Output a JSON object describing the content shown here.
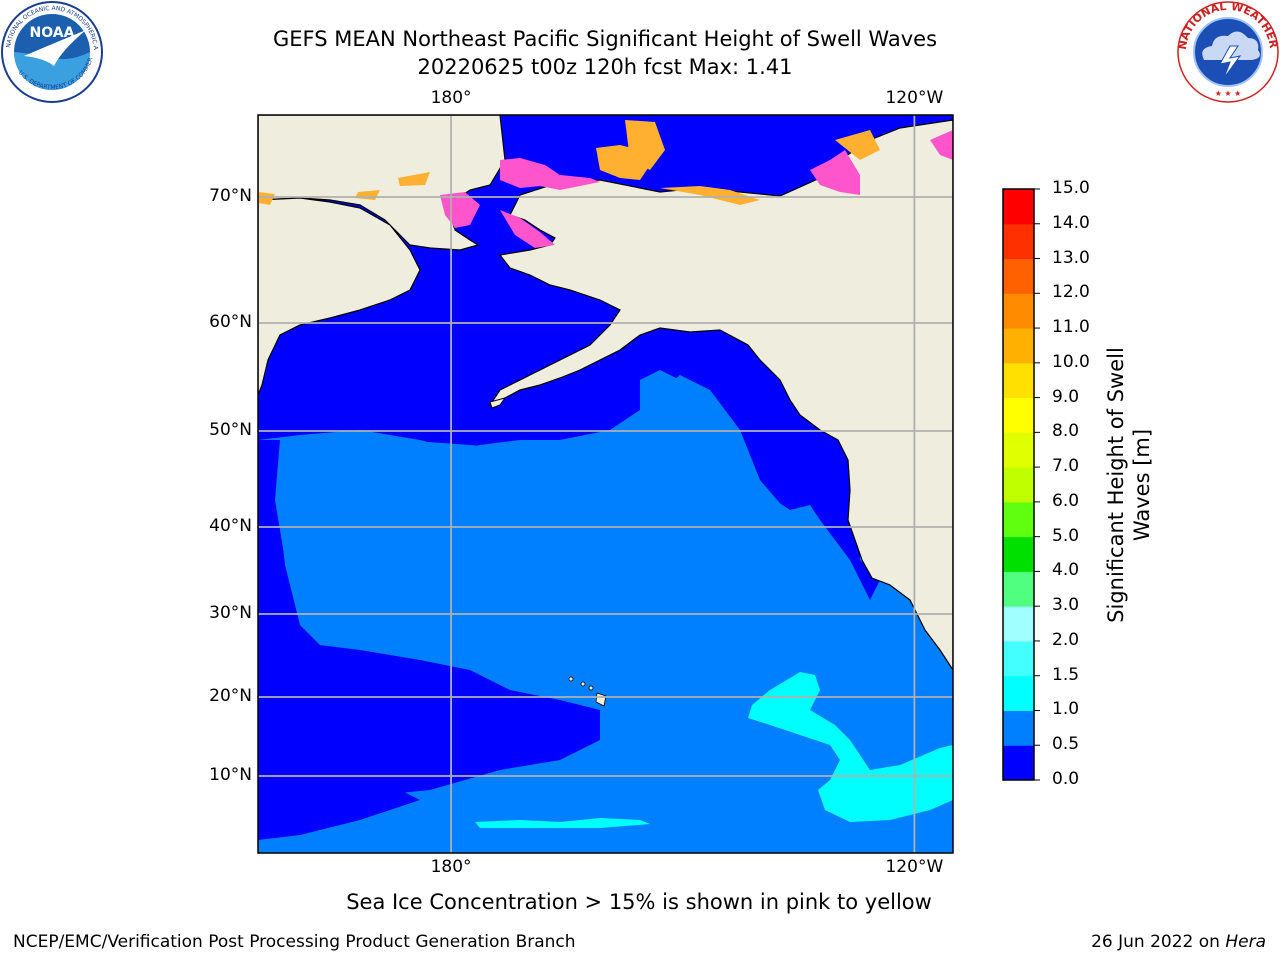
{
  "title": {
    "line1": "GEFS MEAN Northeast Pacific Significant Height of Swell Waves",
    "line2": "20220625 t00z 120h fcst   Max: 1.41"
  },
  "map": {
    "projection": "cylindrical",
    "lon_range": [
      155,
      245
    ],
    "lat_range": [
      2,
      77
    ],
    "lon_ticks": [
      {
        "lon": 180,
        "label": "180°"
      },
      {
        "lon": 240,
        "label": "120°W"
      }
    ],
    "lat_ticks": [
      {
        "lat": 70,
        "label": "70°N"
      },
      {
        "lat": 60,
        "label": "60°N"
      },
      {
        "lat": 50,
        "label": "50°N"
      },
      {
        "lat": 40,
        "label": "40°N"
      },
      {
        "lat": 30,
        "label": "30°N"
      },
      {
        "lat": 20,
        "label": "20°N"
      },
      {
        "lat": 10,
        "label": "10°N"
      }
    ],
    "grid": true,
    "land_color": "#efeddd",
    "field_max": 1.41
  },
  "colorbar": {
    "label_line1": "Significant Height of Swell",
    "label_line2": "Waves [m]",
    "ticks": [
      "0.0",
      "0.5",
      "1.0",
      "1.5",
      "2.0",
      "3.0",
      "4.0",
      "5.0",
      "6.0",
      "7.0",
      "8.0",
      "9.0",
      "10.0",
      "11.0",
      "12.0",
      "13.0",
      "14.0",
      "15.0"
    ],
    "colors": [
      "#0000ff",
      "#0080ff",
      "#00ffff",
      "#44ffff",
      "#a0ffff",
      "#50ff80",
      "#00e000",
      "#60ff10",
      "#c0ff00",
      "#e0ff00",
      "#ffff00",
      "#ffe000",
      "#ffb000",
      "#ff8c00",
      "#ff6000",
      "#ff3000",
      "#ff0000"
    ]
  },
  "footer": {
    "ice_note": "Sea Ice Concentration > 15% is shown in pink to yellow",
    "credit": "NCEP/EMC/Verification Post Processing Product Generation Branch",
    "date": "26 Jun 2022 on ",
    "machine": "Hera"
  },
  "logos": {
    "left": "noaa-logo",
    "right": "nws-logo"
  }
}
